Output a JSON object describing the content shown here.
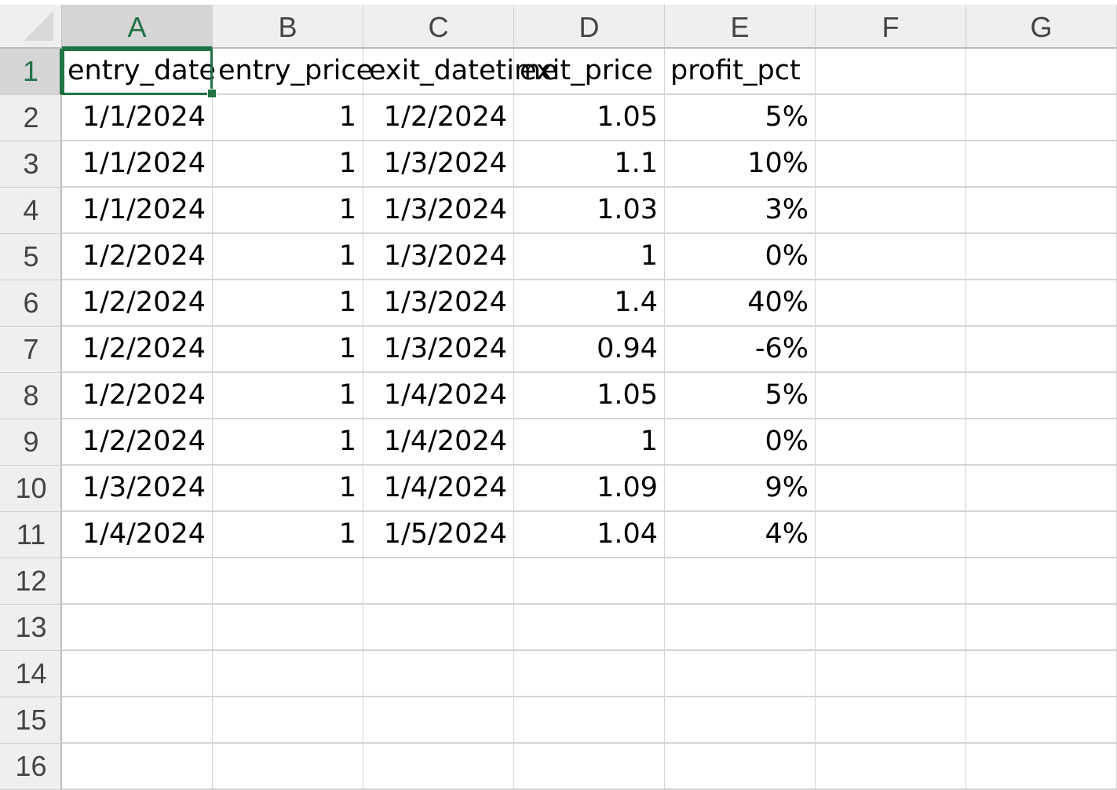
{
  "sheet": {
    "columns": [
      "A",
      "B",
      "C",
      "D",
      "E",
      "F",
      "G"
    ],
    "rows": [
      "1",
      "2",
      "3",
      "4",
      "5",
      "6",
      "7",
      "8",
      "9",
      "10",
      "11",
      "12",
      "13",
      "14",
      "15",
      "16"
    ],
    "active_cell": "A1",
    "accent_color": "#217346",
    "cells": [
      [
        "entry_date",
        "entry_price",
        "exit_datetime",
        "exit_price",
        "profit_pct",
        "",
        ""
      ],
      [
        "1/1/2024",
        "1",
        "1/2/2024",
        "1.05",
        "5%",
        "",
        ""
      ],
      [
        "1/1/2024",
        "1",
        "1/3/2024",
        "1.1",
        "10%",
        "",
        ""
      ],
      [
        "1/1/2024",
        "1",
        "1/3/2024",
        "1.03",
        "3%",
        "",
        ""
      ],
      [
        "1/2/2024",
        "1",
        "1/3/2024",
        "1",
        "0%",
        "",
        ""
      ],
      [
        "1/2/2024",
        "1",
        "1/3/2024",
        "1.4",
        "40%",
        "",
        ""
      ],
      [
        "1/2/2024",
        "1",
        "1/3/2024",
        "0.94",
        "-6%",
        "",
        ""
      ],
      [
        "1/2/2024",
        "1",
        "1/4/2024",
        "1.05",
        "5%",
        "",
        ""
      ],
      [
        "1/2/2024",
        "1",
        "1/4/2024",
        "1",
        "0%",
        "",
        ""
      ],
      [
        "1/3/2024",
        "1",
        "1/4/2024",
        "1.09",
        "9%",
        "",
        ""
      ],
      [
        "1/4/2024",
        "1",
        "1/5/2024",
        "1.04",
        "4%",
        "",
        ""
      ],
      [
        "",
        "",
        "",
        "",
        "",
        "",
        ""
      ],
      [
        "",
        "",
        "",
        "",
        "",
        "",
        ""
      ],
      [
        "",
        "",
        "",
        "",
        "",
        "",
        ""
      ],
      [
        "",
        "",
        "",
        "",
        "",
        "",
        ""
      ],
      [
        "",
        "",
        "",
        "",
        "",
        "",
        ""
      ]
    ]
  }
}
